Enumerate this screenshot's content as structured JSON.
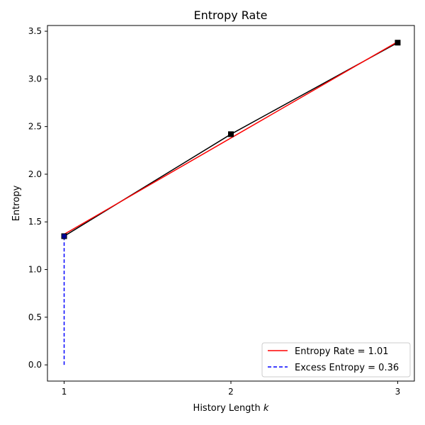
{
  "chart_data": {
    "type": "line",
    "title": "Entropy Rate",
    "xlabel_prefix": "History Length ",
    "xlabel_var": "k",
    "ylabel": "Entropy",
    "xlim": [
      0.9,
      3.1
    ],
    "ylim": [
      -0.17,
      3.56
    ],
    "xticks": [
      1,
      2,
      3
    ],
    "xtick_labels": [
      "1",
      "2",
      "3"
    ],
    "yticks": [
      0.0,
      0.5,
      1.0,
      1.5,
      2.0,
      2.5,
      3.0,
      3.5
    ],
    "ytick_labels": [
      "0.0",
      "0.5",
      "1.0",
      "1.5",
      "2.0",
      "2.5",
      "3.0",
      "3.5"
    ],
    "grid": false,
    "legend_position": "bottom-right",
    "series": [
      {
        "x": [
          1,
          2,
          3
        ],
        "y": [
          1.35,
          2.42,
          3.38
        ],
        "color": "#000000",
        "style": "solid",
        "marker": "square"
      },
      {
        "name": "Entropy Rate = 1.01",
        "x": [
          1,
          2,
          3
        ],
        "y": [
          1.37,
          2.38,
          3.39
        ],
        "color": "#ff0000",
        "style": "solid"
      },
      {
        "name": "Excess Entropy = 0.36",
        "x": [
          1,
          1
        ],
        "y": [
          0.0,
          1.35
        ],
        "color": "#0000ff",
        "style": "dashed"
      }
    ]
  }
}
